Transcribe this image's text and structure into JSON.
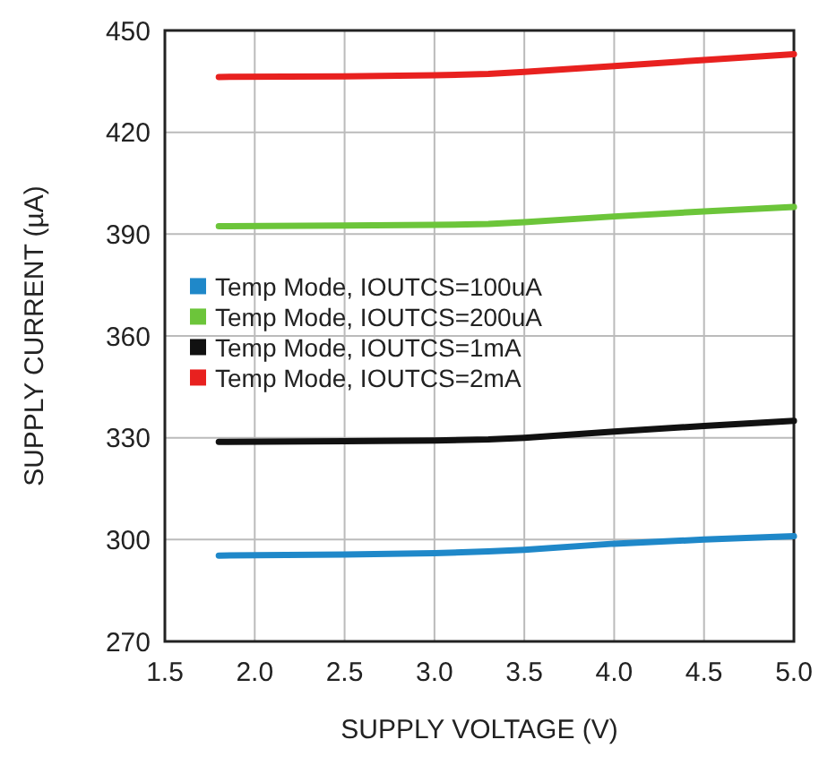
{
  "chart_data": {
    "type": "line",
    "xlabel": "SUPPLY VOLTAGE (V)",
    "ylabel": "SUPPLY CURRENT (µA)",
    "x": [
      1.8,
      2.5,
      3.0,
      3.3,
      3.5,
      4.0,
      4.5,
      5.0
    ],
    "series": [
      {
        "name": "Temp Mode, IOUTCS=100uA",
        "color": "#1f88c9",
        "values": [
          295.3,
          295.6,
          296,
          296.5,
          297,
          298.8,
          300,
          301
        ]
      },
      {
        "name": "Temp Mode, IOUTCS=200uA",
        "color": "#6cc53a",
        "values": [
          392.3,
          392.5,
          392.7,
          393,
          393.5,
          395.2,
          396.7,
          398
        ]
      },
      {
        "name": "Temp Mode, IOUTCS=1mA",
        "color": "#111111",
        "values": [
          328.8,
          329,
          329.2,
          329.5,
          330,
          331.8,
          333.5,
          335
        ]
      },
      {
        "name": "Temp Mode, IOUTCS=2mA",
        "color": "#e8211f",
        "values": [
          436.3,
          436.5,
          436.8,
          437.2,
          437.8,
          439.5,
          441.3,
          443
        ]
      }
    ],
    "xlim": [
      1.5,
      5.0
    ],
    "xticks": [
      {
        "value": 1.5,
        "label": "1.5"
      },
      {
        "value": 2,
        "label": "2.0"
      },
      {
        "value": 2.5,
        "label": "2.5"
      },
      {
        "value": 3,
        "label": "3.0"
      },
      {
        "value": 3.5,
        "label": "3.5"
      },
      {
        "value": 4,
        "label": "4.0"
      },
      {
        "value": 4.5,
        "label": "4.5"
      },
      {
        "value": 5,
        "label": "5.0"
      }
    ],
    "ylim": [
      270,
      450
    ],
    "yticks": [
      270,
      300,
      330,
      360,
      390,
      420,
      450
    ],
    "grid": true,
    "legend": "left",
    "marker": "none",
    "line_style": "solid"
  }
}
